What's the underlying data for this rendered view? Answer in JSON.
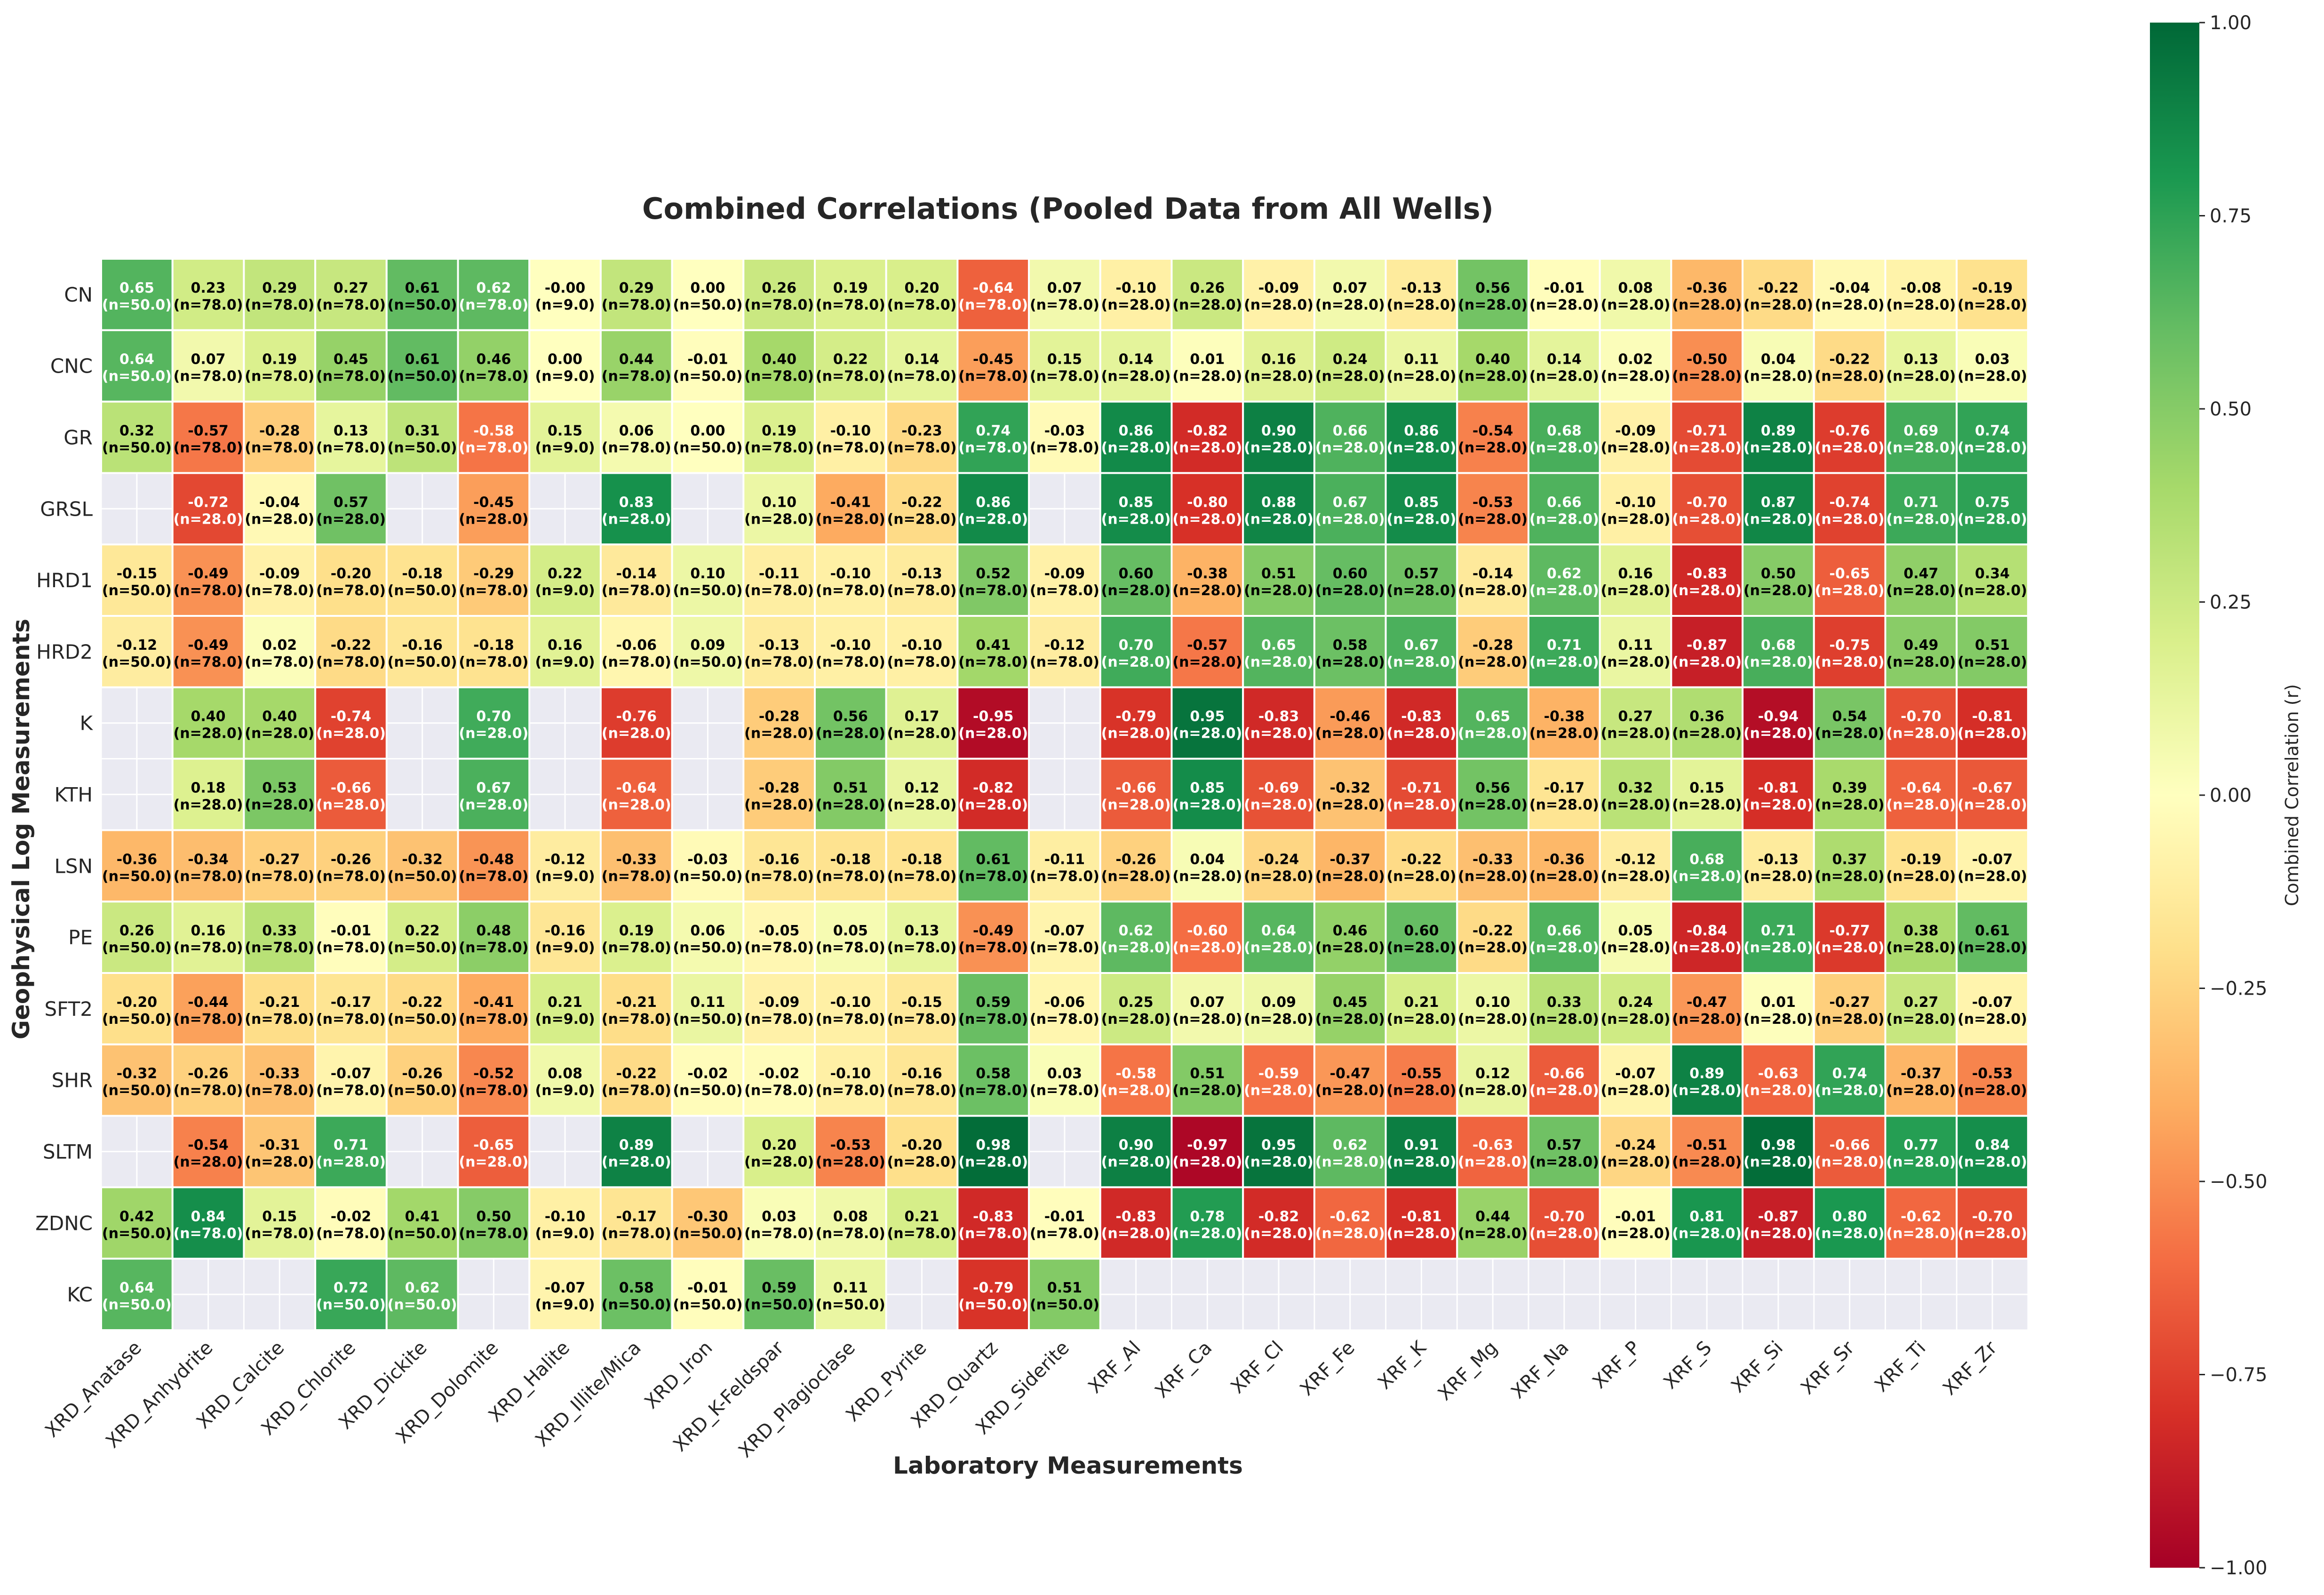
{
  "chart_data": {
    "type": "heatmap",
    "title": "Combined Correlations (Pooled Data from All Wells)",
    "xlabel": "Laboratory Measurements",
    "ylabel": "Geophysical Log Measurements",
    "colorbar_label": "Combined Correlation (r)",
    "colorbar_ticks": [
      "1.00",
      "0.75",
      "0.50",
      "0.25",
      "0.00",
      "−0.25",
      "−0.50",
      "−0.75",
      "−1.00"
    ],
    "vmin": -1,
    "vmax": 1,
    "colormap": "RdYlGn",
    "colormap_stops": [
      "#a50026",
      "#d73027",
      "#f46d43",
      "#fdae61",
      "#fee08b",
      "#ffffbf",
      "#d9ef8b",
      "#a6d96a",
      "#66bd63",
      "#1a9850",
      "#006837"
    ],
    "missing_color": "#eaeaf2",
    "rows": [
      "CN",
      "CNC",
      "GR",
      "GRSL",
      "HRD1",
      "HRD2",
      "K",
      "KTH",
      "LSN",
      "PE",
      "SFT2",
      "SHR",
      "SLTM",
      "ZDNC",
      "KC"
    ],
    "cols": [
      "XRD_Anatase",
      "XRD_Anhydrite",
      "XRD_Calcite",
      "XRD_Chlorite",
      "XRD_Dickite",
      "XRD_Dolomite",
      "XRD_Halite",
      "XRD_Illite/Mica",
      "XRD_Iron",
      "XRD_K-Feldspar",
      "XRD_Plagioclase",
      "XRD_Pyrite",
      "XRD_Quartz",
      "XRD_Siderite",
      "XRF_Al",
      "XRF_Ca",
      "XRF_Cl",
      "XRF_Fe",
      "XRF_K",
      "XRF_Mg",
      "XRF_Na",
      "XRF_P",
      "XRF_S",
      "XRF_Si",
      "XRF_Sr",
      "XRF_Ti",
      "XRF_Zr"
    ],
    "values": [
      [
        "0.65",
        "0.23",
        "0.29",
        "0.27",
        "0.61",
        "0.62",
        "-0.00",
        "0.29",
        "0.00",
        "0.26",
        "0.19",
        "0.20",
        "-0.64",
        "0.07",
        "-0.10",
        "0.26",
        "-0.09",
        "0.07",
        "-0.13",
        "0.56",
        "-0.01",
        "0.08",
        "-0.36",
        "-0.22",
        "-0.04",
        "-0.08",
        "-0.19"
      ],
      [
        "0.64",
        "0.07",
        "0.19",
        "0.45",
        "0.61",
        "0.46",
        "0.00",
        "0.44",
        "-0.01",
        "0.40",
        "0.22",
        "0.14",
        "-0.45",
        "0.15",
        "0.14",
        "0.01",
        "0.16",
        "0.24",
        "0.11",
        "0.40",
        "0.14",
        "0.02",
        "-0.50",
        "0.04",
        "-0.22",
        "0.13",
        "0.03"
      ],
      [
        "0.32",
        "-0.57",
        "-0.28",
        "0.13",
        "0.31",
        "-0.58",
        "0.15",
        "0.06",
        "0.00",
        "0.19",
        "-0.10",
        "-0.23",
        "0.74",
        "-0.03",
        "0.86",
        "-0.82",
        "0.90",
        "0.66",
        "0.86",
        "-0.54",
        "0.68",
        "-0.09",
        "-0.71",
        "0.89",
        "-0.76",
        "0.69",
        "0.74"
      ],
      [
        null,
        "-0.72",
        "-0.04",
        "0.57",
        null,
        "-0.45",
        null,
        "0.83",
        null,
        "0.10",
        "-0.41",
        "-0.22",
        "0.86",
        null,
        "0.85",
        "-0.80",
        "0.88",
        "0.67",
        "0.85",
        "-0.53",
        "0.66",
        "-0.10",
        "-0.70",
        "0.87",
        "-0.74",
        "0.71",
        "0.75"
      ],
      [
        "-0.15",
        "-0.49",
        "-0.09",
        "-0.20",
        "-0.18",
        "-0.29",
        "0.22",
        "-0.14",
        "0.10",
        "-0.11",
        "-0.10",
        "-0.13",
        "0.52",
        "-0.09",
        "0.60",
        "-0.38",
        "0.51",
        "0.60",
        "0.57",
        "-0.14",
        "0.62",
        "0.16",
        "-0.83",
        "0.50",
        "-0.65",
        "0.47",
        "0.34"
      ],
      [
        "-0.12",
        "-0.49",
        "0.02",
        "-0.22",
        "-0.16",
        "-0.18",
        "0.16",
        "-0.06",
        "0.09",
        "-0.13",
        "-0.10",
        "-0.10",
        "0.41",
        "-0.12",
        "0.70",
        "-0.57",
        "0.65",
        "0.58",
        "0.67",
        "-0.28",
        "0.71",
        "0.11",
        "-0.87",
        "0.68",
        "-0.75",
        "0.49",
        "0.51"
      ],
      [
        null,
        "0.40",
        "0.40",
        "-0.74",
        null,
        "0.70",
        null,
        "-0.76",
        null,
        "-0.28",
        "0.56",
        "0.17",
        "-0.95",
        null,
        "-0.79",
        "0.95",
        "-0.83",
        "-0.46",
        "-0.83",
        "0.65",
        "-0.38",
        "0.27",
        "0.36",
        "-0.94",
        "0.54",
        "-0.70",
        "-0.81"
      ],
      [
        null,
        "0.18",
        "0.53",
        "-0.66",
        null,
        "0.67",
        null,
        "-0.64",
        null,
        "-0.28",
        "0.51",
        "0.12",
        "-0.82",
        null,
        "-0.66",
        "0.85",
        "-0.69",
        "-0.32",
        "-0.71",
        "0.56",
        "-0.17",
        "0.32",
        "0.15",
        "-0.81",
        "0.39",
        "-0.64",
        "-0.67"
      ],
      [
        "-0.36",
        "-0.34",
        "-0.27",
        "-0.26",
        "-0.32",
        "-0.48",
        "-0.12",
        "-0.33",
        "-0.03",
        "-0.16",
        "-0.18",
        "-0.18",
        "0.61",
        "-0.11",
        "-0.26",
        "0.04",
        "-0.24",
        "-0.37",
        "-0.22",
        "-0.33",
        "-0.36",
        "-0.12",
        "0.68",
        "-0.13",
        "0.37",
        "-0.19",
        "-0.07"
      ],
      [
        "0.26",
        "0.16",
        "0.33",
        "-0.01",
        "0.22",
        "0.48",
        "-0.16",
        "0.19",
        "0.06",
        "-0.05",
        "0.05",
        "0.13",
        "-0.49",
        "-0.07",
        "0.62",
        "-0.60",
        "0.64",
        "0.46",
        "0.60",
        "-0.22",
        "0.66",
        "0.05",
        "-0.84",
        "0.71",
        "-0.77",
        "0.38",
        "0.61"
      ],
      [
        "-0.20",
        "-0.44",
        "-0.21",
        "-0.17",
        "-0.22",
        "-0.41",
        "0.21",
        "-0.21",
        "0.11",
        "-0.09",
        "-0.10",
        "-0.15",
        "0.59",
        "-0.06",
        "0.25",
        "0.07",
        "0.09",
        "0.45",
        "0.21",
        "0.10",
        "0.33",
        "0.24",
        "-0.47",
        "0.01",
        "-0.27",
        "0.27",
        "-0.07"
      ],
      [
        "-0.32",
        "-0.26",
        "-0.33",
        "-0.07",
        "-0.26",
        "-0.52",
        "0.08",
        "-0.22",
        "-0.02",
        "-0.02",
        "-0.10",
        "-0.16",
        "0.58",
        "0.03",
        "-0.58",
        "0.51",
        "-0.59",
        "-0.47",
        "-0.55",
        "0.12",
        "-0.66",
        "-0.07",
        "0.89",
        "-0.63",
        "0.74",
        "-0.37",
        "-0.53"
      ],
      [
        null,
        "-0.54",
        "-0.31",
        "0.71",
        null,
        "-0.65",
        null,
        "0.89",
        null,
        "0.20",
        "-0.53",
        "-0.20",
        "0.98",
        null,
        "0.90",
        "-0.97",
        "0.95",
        "0.62",
        "0.91",
        "-0.63",
        "0.57",
        "-0.24",
        "-0.51",
        "0.98",
        "-0.66",
        "0.77",
        "0.84"
      ],
      [
        "0.42",
        "0.84",
        "0.15",
        "-0.02",
        "0.41",
        "0.50",
        "-0.10",
        "-0.17",
        "-0.30",
        "0.03",
        "0.08",
        "0.21",
        "-0.83",
        "-0.01",
        "-0.83",
        "0.78",
        "-0.82",
        "-0.62",
        "-0.81",
        "0.44",
        "-0.70",
        "-0.01",
        "0.81",
        "-0.87",
        "0.80",
        "-0.62",
        "-0.70"
      ],
      [
        "0.64",
        null,
        null,
        "0.72",
        "0.62",
        null,
        "-0.07",
        "0.58",
        "-0.01",
        "0.59",
        "0.11",
        null,
        "-0.79",
        "0.51",
        null,
        null,
        null,
        null,
        null,
        null,
        null,
        null,
        null,
        null,
        null,
        null,
        null
      ]
    ],
    "n_labels": [
      [
        "(n=50.0)",
        "(n=78.0)",
        "(n=78.0)",
        "(n=78.0)",
        "(n=50.0)",
        "(n=78.0)",
        "(n=9.0)",
        "(n=78.0)",
        "(n=50.0)",
        "(n=78.0)",
        "(n=78.0)",
        "(n=78.0)",
        "(n=78.0)",
        "(n=78.0)",
        "(n=28.0)",
        "(n=28.0)",
        "(n=28.0)",
        "(n=28.0)",
        "(n=28.0)",
        "(n=28.0)",
        "(n=28.0)",
        "(n=28.0)",
        "(n=28.0)",
        "(n=28.0)",
        "(n=28.0)",
        "(n=28.0)",
        "(n=28.0)"
      ],
      [
        "(n=50.0)",
        "(n=78.0)",
        "(n=78.0)",
        "(n=78.0)",
        "(n=50.0)",
        "(n=78.0)",
        "(n=9.0)",
        "(n=78.0)",
        "(n=50.0)",
        "(n=78.0)",
        "(n=78.0)",
        "(n=78.0)",
        "(n=78.0)",
        "(n=78.0)",
        "(n=28.0)",
        "(n=28.0)",
        "(n=28.0)",
        "(n=28.0)",
        "(n=28.0)",
        "(n=28.0)",
        "(n=28.0)",
        "(n=28.0)",
        "(n=28.0)",
        "(n=28.0)",
        "(n=28.0)",
        "(n=28.0)",
        "(n=28.0)"
      ],
      [
        "(n=50.0)",
        "(n=78.0)",
        "(n=78.0)",
        "(n=78.0)",
        "(n=50.0)",
        "(n=78.0)",
        "(n=9.0)",
        "(n=78.0)",
        "(n=50.0)",
        "(n=78.0)",
        "(n=78.0)",
        "(n=78.0)",
        "(n=78.0)",
        "(n=78.0)",
        "(n=28.0)",
        "(n=28.0)",
        "(n=28.0)",
        "(n=28.0)",
        "(n=28.0)",
        "(n=28.0)",
        "(n=28.0)",
        "(n=28.0)",
        "(n=28.0)",
        "(n=28.0)",
        "(n=28.0)",
        "(n=28.0)",
        "(n=28.0)"
      ],
      [
        null,
        "(n=28.0)",
        "(n=28.0)",
        "(n=28.0)",
        null,
        "(n=28.0)",
        null,
        "(n=28.0)",
        null,
        "(n=28.0)",
        "(n=28.0)",
        "(n=28.0)",
        "(n=28.0)",
        null,
        "(n=28.0)",
        "(n=28.0)",
        "(n=28.0)",
        "(n=28.0)",
        "(n=28.0)",
        "(n=28.0)",
        "(n=28.0)",
        "(n=28.0)",
        "(n=28.0)",
        "(n=28.0)",
        "(n=28.0)",
        "(n=28.0)",
        "(n=28.0)"
      ],
      [
        "(n=50.0)",
        "(n=78.0)",
        "(n=78.0)",
        "(n=78.0)",
        "(n=50.0)",
        "(n=78.0)",
        "(n=9.0)",
        "(n=78.0)",
        "(n=50.0)",
        "(n=78.0)",
        "(n=78.0)",
        "(n=78.0)",
        "(n=78.0)",
        "(n=78.0)",
        "(n=28.0)",
        "(n=28.0)",
        "(n=28.0)",
        "(n=28.0)",
        "(n=28.0)",
        "(n=28.0)",
        "(n=28.0)",
        "(n=28.0)",
        "(n=28.0)",
        "(n=28.0)",
        "(n=28.0)",
        "(n=28.0)",
        "(n=28.0)"
      ],
      [
        "(n=50.0)",
        "(n=78.0)",
        "(n=78.0)",
        "(n=78.0)",
        "(n=50.0)",
        "(n=78.0)",
        "(n=9.0)",
        "(n=78.0)",
        "(n=50.0)",
        "(n=78.0)",
        "(n=78.0)",
        "(n=78.0)",
        "(n=78.0)",
        "(n=78.0)",
        "(n=28.0)",
        "(n=28.0)",
        "(n=28.0)",
        "(n=28.0)",
        "(n=28.0)",
        "(n=28.0)",
        "(n=28.0)",
        "(n=28.0)",
        "(n=28.0)",
        "(n=28.0)",
        "(n=28.0)",
        "(n=28.0)",
        "(n=28.0)"
      ],
      [
        null,
        "(n=28.0)",
        "(n=28.0)",
        "(n=28.0)",
        null,
        "(n=28.0)",
        null,
        "(n=28.0)",
        null,
        "(n=28.0)",
        "(n=28.0)",
        "(n=28.0)",
        "(n=28.0)",
        null,
        "(n=28.0)",
        "(n=28.0)",
        "(n=28.0)",
        "(n=28.0)",
        "(n=28.0)",
        "(n=28.0)",
        "(n=28.0)",
        "(n=28.0)",
        "(n=28.0)",
        "(n=28.0)",
        "(n=28.0)",
        "(n=28.0)",
        "(n=28.0)"
      ],
      [
        null,
        "(n=28.0)",
        "(n=28.0)",
        "(n=28.0)",
        null,
        "(n=28.0)",
        null,
        "(n=28.0)",
        null,
        "(n=28.0)",
        "(n=28.0)",
        "(n=28.0)",
        "(n=28.0)",
        null,
        "(n=28.0)",
        "(n=28.0)",
        "(n=28.0)",
        "(n=28.0)",
        "(n=28.0)",
        "(n=28.0)",
        "(n=28.0)",
        "(n=28.0)",
        "(n=28.0)",
        "(n=28.0)",
        "(n=28.0)",
        "(n=28.0)",
        "(n=28.0)"
      ],
      [
        "(n=50.0)",
        "(n=78.0)",
        "(n=78.0)",
        "(n=78.0)",
        "(n=50.0)",
        "(n=78.0)",
        "(n=9.0)",
        "(n=78.0)",
        "(n=50.0)",
        "(n=78.0)",
        "(n=78.0)",
        "(n=78.0)",
        "(n=78.0)",
        "(n=78.0)",
        "(n=28.0)",
        "(n=28.0)",
        "(n=28.0)",
        "(n=28.0)",
        "(n=28.0)",
        "(n=28.0)",
        "(n=28.0)",
        "(n=28.0)",
        "(n=28.0)",
        "(n=28.0)",
        "(n=28.0)",
        "(n=28.0)",
        "(n=28.0)"
      ],
      [
        "(n=50.0)",
        "(n=78.0)",
        "(n=78.0)",
        "(n=78.0)",
        "(n=50.0)",
        "(n=78.0)",
        "(n=9.0)",
        "(n=78.0)",
        "(n=50.0)",
        "(n=78.0)",
        "(n=78.0)",
        "(n=78.0)",
        "(n=78.0)",
        "(n=78.0)",
        "(n=28.0)",
        "(n=28.0)",
        "(n=28.0)",
        "(n=28.0)",
        "(n=28.0)",
        "(n=28.0)",
        "(n=28.0)",
        "(n=28.0)",
        "(n=28.0)",
        "(n=28.0)",
        "(n=28.0)",
        "(n=28.0)",
        "(n=28.0)"
      ],
      [
        "(n=50.0)",
        "(n=78.0)",
        "(n=78.0)",
        "(n=78.0)",
        "(n=50.0)",
        "(n=78.0)",
        "(n=9.0)",
        "(n=78.0)",
        "(n=50.0)",
        "(n=78.0)",
        "(n=78.0)",
        "(n=78.0)",
        "(n=78.0)",
        "(n=78.0)",
        "(n=28.0)",
        "(n=28.0)",
        "(n=28.0)",
        "(n=28.0)",
        "(n=28.0)",
        "(n=28.0)",
        "(n=28.0)",
        "(n=28.0)",
        "(n=28.0)",
        "(n=28.0)",
        "(n=28.0)",
        "(n=28.0)",
        "(n=28.0)"
      ],
      [
        "(n=50.0)",
        "(n=78.0)",
        "(n=78.0)",
        "(n=78.0)",
        "(n=50.0)",
        "(n=78.0)",
        "(n=9.0)",
        "(n=78.0)",
        "(n=50.0)",
        "(n=78.0)",
        "(n=78.0)",
        "(n=78.0)",
        "(n=78.0)",
        "(n=78.0)",
        "(n=28.0)",
        "(n=28.0)",
        "(n=28.0)",
        "(n=28.0)",
        "(n=28.0)",
        "(n=28.0)",
        "(n=28.0)",
        "(n=28.0)",
        "(n=28.0)",
        "(n=28.0)",
        "(n=28.0)",
        "(n=28.0)",
        "(n=28.0)"
      ],
      [
        null,
        "(n=28.0)",
        "(n=28.0)",
        "(n=28.0)",
        null,
        "(n=28.0)",
        null,
        "(n=28.0)",
        null,
        "(n=28.0)",
        "(n=28.0)",
        "(n=28.0)",
        "(n=28.0)",
        null,
        "(n=28.0)",
        "(n=28.0)",
        "(n=28.0)",
        "(n=28.0)",
        "(n=28.0)",
        "(n=28.0)",
        "(n=28.0)",
        "(n=28.0)",
        "(n=28.0)",
        "(n=28.0)",
        "(n=28.0)",
        "(n=28.0)",
        "(n=28.0)"
      ],
      [
        "(n=50.0)",
        "(n=78.0)",
        "(n=78.0)",
        "(n=78.0)",
        "(n=50.0)",
        "(n=78.0)",
        "(n=9.0)",
        "(n=78.0)",
        "(n=50.0)",
        "(n=78.0)",
        "(n=78.0)",
        "(n=78.0)",
        "(n=78.0)",
        "(n=78.0)",
        "(n=28.0)",
        "(n=28.0)",
        "(n=28.0)",
        "(n=28.0)",
        "(n=28.0)",
        "(n=28.0)",
        "(n=28.0)",
        "(n=28.0)",
        "(n=28.0)",
        "(n=28.0)",
        "(n=28.0)",
        "(n=28.0)",
        "(n=28.0)"
      ],
      [
        "(n=50.0)",
        null,
        null,
        "(n=50.0)",
        "(n=50.0)",
        null,
        "(n=9.0)",
        "(n=50.0)",
        "(n=50.0)",
        "(n=50.0)",
        "(n=50.0)",
        null,
        "(n=50.0)",
        "(n=50.0)",
        null,
        null,
        null,
        null,
        null,
        null,
        null,
        null,
        null,
        null,
        null,
        null,
        null
      ]
    ]
  }
}
